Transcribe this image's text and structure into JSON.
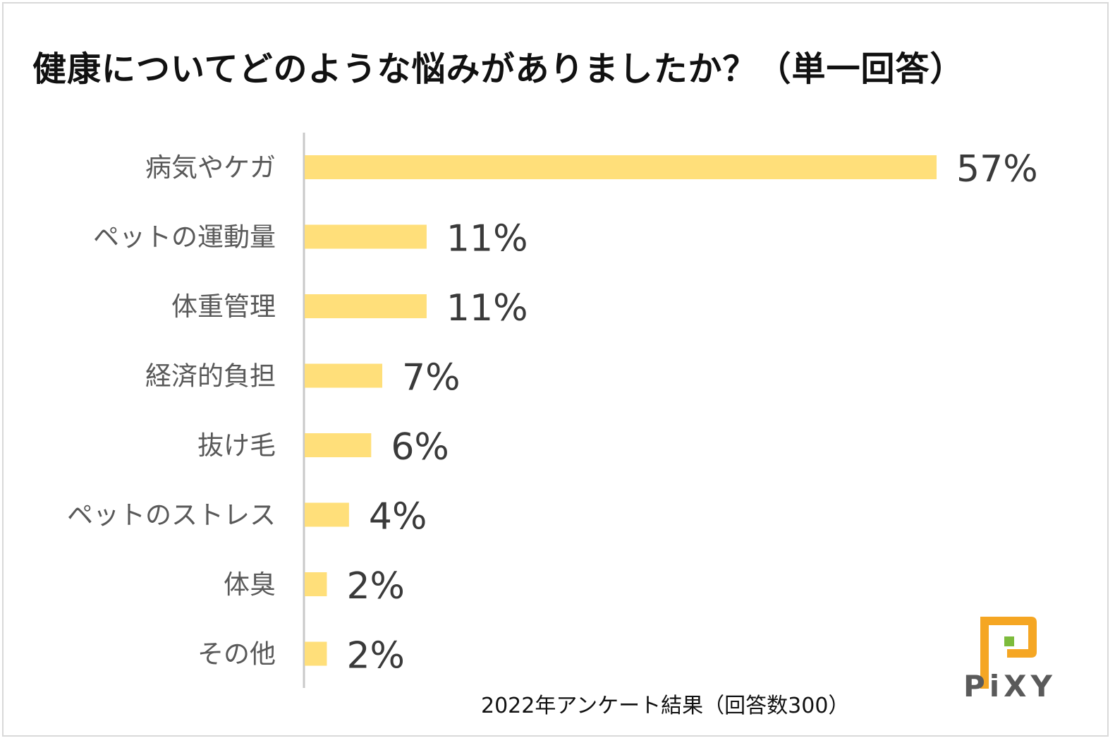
{
  "title": "健康についてどのような悩みがありましたか？（単一回答）",
  "footnote": "2022年アンケート結果（回答数300）",
  "logo": {
    "text": "PiXY",
    "icon": "pixy-logo-icon",
    "colors": [
      "#f5a623",
      "#7dbb3c"
    ]
  },
  "colors": {
    "bar": "#ffdf7a",
    "axis": "#c8c8c8",
    "category_text": "#595959",
    "value_text": "#3a3a3a"
  },
  "chart_data": {
    "type": "bar",
    "orientation": "horizontal",
    "title": "健康についてどのような悩みがありましたか？（単一回答）",
    "xlabel": "",
    "ylabel": "",
    "unit": "%",
    "xlim": [
      0,
      60
    ],
    "grid": false,
    "categories": [
      "病気やケガ",
      "ペットの運動量",
      "体重管理",
      "経済的負担",
      "抜け毛",
      "ペットのストレス",
      "体臭",
      "その他"
    ],
    "values": [
      57,
      11,
      11,
      7,
      6,
      4,
      2,
      2
    ],
    "value_labels": [
      "57%",
      "11%",
      "11%",
      "7%",
      "6%",
      "4%",
      "2%",
      "2%"
    ]
  }
}
